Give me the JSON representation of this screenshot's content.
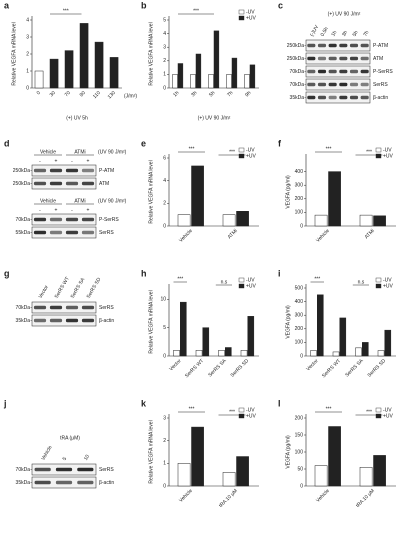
{
  "chart_data": [
    {
      "type": "bar",
      "letter": "a",
      "ylabel": "Relative VEGFA mRNA level",
      "xlabel": "(+) UV 5h",
      "xunit": "(J/m²)",
      "categories": [
        "0",
        "30",
        "70",
        "90",
        "110",
        "130"
      ],
      "values": [
        1,
        1.7,
        2.2,
        3.8,
        2.7,
        1.8
      ],
      "colors": [
        "#ffffff",
        "#222222",
        "#222222",
        "#222222",
        "#222222",
        "#222222"
      ],
      "ylim": [
        0,
        4
      ],
      "yticks": [
        0,
        1,
        2,
        3,
        4
      ],
      "annotations": [
        "***"
      ]
    },
    {
      "type": "bar",
      "letter": "b",
      "ylabel": "Relative VEGFA mRNA level",
      "xlabel": "(+) UV 90 J/m²",
      "categories": [
        "1h",
        "3h",
        "5h",
        "7h",
        "9h"
      ],
      "series": [
        {
          "name": "-UV",
          "color": "#ffffff",
          "values": [
            1,
            1,
            1,
            1,
            1
          ]
        },
        {
          "name": "+UV",
          "color": "#222222",
          "values": [
            1.8,
            2.5,
            4.2,
            2.2,
            1.7
          ]
        }
      ],
      "ylim": [
        0,
        5
      ],
      "yticks": [
        0,
        1,
        2,
        3,
        4,
        5
      ],
      "annotations": [
        "***"
      ]
    },
    {
      "type": "bar",
      "letter": "e",
      "ylabel": "Relative VEGFA mRNA level",
      "categories": [
        "Vehicle",
        "ATMi"
      ],
      "series": [
        {
          "name": "-UV",
          "color": "#ffffff",
          "values": [
            1,
            1
          ]
        },
        {
          "name": "+UV",
          "color": "#222222",
          "values": [
            5.3,
            1.3
          ]
        }
      ],
      "ylim": [
        0,
        6
      ],
      "yticks": [
        0,
        2,
        4,
        6
      ],
      "annotations": [
        "***",
        "***"
      ]
    },
    {
      "type": "bar",
      "letter": "f",
      "ylabel": "VEGFA (pg/ml)",
      "categories": [
        "Vehicle",
        "ATMi"
      ],
      "series": [
        {
          "name": "-UV",
          "color": "#ffffff",
          "values": [
            80,
            80
          ]
        },
        {
          "name": "+UV",
          "color": "#222222",
          "values": [
            400,
            75
          ]
        }
      ],
      "ylim": [
        0,
        500
      ],
      "yticks": [
        0,
        100,
        200,
        300,
        400
      ],
      "annotations": [
        "***",
        "***"
      ]
    },
    {
      "type": "bar",
      "letter": "h",
      "ylabel": "Relative VEGFA mRNA level",
      "categories": [
        "Vector",
        "SerRS WT",
        "SerRS SA",
        "SerRS SD"
      ],
      "series": [
        {
          "name": "-UV",
          "color": "#ffffff",
          "values": [
            1,
            1,
            1,
            1
          ]
        },
        {
          "name": "+UV",
          "color": "#222222",
          "values": [
            9.5,
            5,
            1.5,
            7
          ]
        }
      ],
      "ylim": [
        0,
        12
      ],
      "yticks": [
        0,
        5,
        10
      ],
      "annotations": [
        "***",
        "n.s"
      ]
    },
    {
      "type": "bar",
      "letter": "i",
      "ylabel": "VEGFA (pg/ml)",
      "categories": [
        "Vector",
        "SerRS WT",
        "SerRS SA",
        "SerRS SD"
      ],
      "series": [
        {
          "name": "-UV",
          "color": "#ffffff",
          "values": [
            40,
            30,
            60,
            40
          ]
        },
        {
          "name": "+UV",
          "color": "#222222",
          "values": [
            450,
            280,
            100,
            190
          ]
        }
      ],
      "ylim": [
        0,
        500
      ],
      "yticks": [
        0,
        100,
        200,
        300,
        400,
        500
      ],
      "annotations": [
        "***",
        "n.s"
      ]
    },
    {
      "type": "bar",
      "letter": "k",
      "ylabel": "Relative VEGFA mRNA level",
      "categories": [
        "Vehicle",
        "tRA 10 μM"
      ],
      "series": [
        {
          "name": "-UV",
          "color": "#ffffff",
          "values": [
            1,
            0.6
          ]
        },
        {
          "name": "+UV",
          "color": "#222222",
          "values": [
            2.6,
            1.3
          ]
        }
      ],
      "ylim": [
        0,
        3
      ],
      "yticks": [
        0,
        1,
        2,
        3
      ],
      "annotations": [
        "***",
        "***"
      ]
    },
    {
      "type": "bar",
      "letter": "l",
      "ylabel": "VEGFA (pg/ml)",
      "categories": [
        "Vehicle",
        "tRA 10 μM"
      ],
      "series": [
        {
          "name": "-UV",
          "color": "#ffffff",
          "values": [
            60,
            55
          ]
        },
        {
          "name": "+UV",
          "color": "#222222",
          "values": [
            175,
            90
          ]
        }
      ],
      "ylim": [
        0,
        200
      ],
      "yticks": [
        0,
        50,
        100,
        150,
        200
      ],
      "annotations": [
        "***",
        "***"
      ]
    }
  ],
  "blots": [
    {
      "letter": "c",
      "groups": [
        {
          "header": "(+) UV 90 J/m²",
          "lanes": [
            "(-)UV",
            "0.5h",
            "1h",
            "3h",
            "5h",
            "7h"
          ],
          "rows": [
            {
              "label": "P-ATM",
              "marker": "250kDa"
            },
            {
              "label": "ATM",
              "marker": "250kDa"
            },
            {
              "label": "P-SerRS",
              "marker": "70kDa"
            },
            {
              "label": "SerRS",
              "marker": "70kDa"
            },
            {
              "label": "β-actin",
              "marker": "35kDa"
            }
          ]
        }
      ]
    },
    {
      "letter": "d",
      "groups": [
        {
          "header": "(UV 90 J/m²)",
          "conditions": [
            "Vehicle",
            "ATMi"
          ],
          "lanes": [
            "-",
            "+",
            "-",
            "+"
          ],
          "rows": [
            {
              "label": "P-ATM",
              "marker": "250kDa"
            },
            {
              "label": "ATM",
              "marker": "250kDa"
            }
          ]
        },
        {
          "header": "(UV 90 J/m²)",
          "conditions": [
            "Vehicle",
            "ATMi"
          ],
          "lanes": [
            "-",
            "+",
            "-",
            "+"
          ],
          "rows": [
            {
              "label": "P-SerRS",
              "marker": "70kDa"
            },
            {
              "label": "SerRS",
              "marker": "55kDa"
            }
          ]
        }
      ]
    },
    {
      "letter": "g",
      "groups": [
        {
          "lanes": [
            "Vector",
            "SerRS WT",
            "SerRS SA",
            "SerRS SD"
          ],
          "rows": [
            {
              "label": "SerRS",
              "marker": "70kDa"
            },
            {
              "label": "β-actin",
              "marker": "35kDa"
            }
          ]
        }
      ]
    },
    {
      "letter": "j",
      "groups": [
        {
          "header": "tRA (μM)",
          "lanes": [
            "Vehicle",
            "5",
            "10"
          ],
          "rows": [
            {
              "label": "SerRS",
              "marker": "70kDa"
            },
            {
              "label": "β-actin",
              "marker": "35kDa"
            }
          ]
        }
      ]
    }
  ]
}
